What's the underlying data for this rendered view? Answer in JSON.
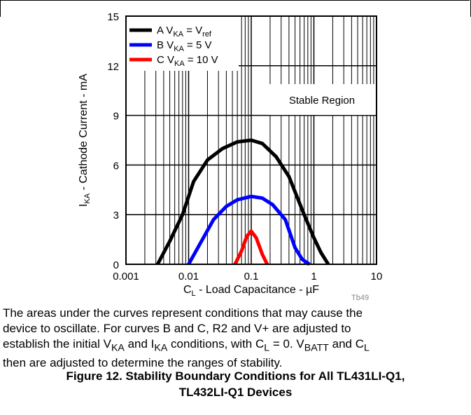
{
  "chart_data": {
    "type": "line",
    "x_scale": "log",
    "xlim": [
      0.001,
      10
    ],
    "ylim": [
      0,
      15
    ],
    "x_ticks": [
      "0.001",
      "0.01",
      "0.1",
      "1",
      "10"
    ],
    "y_ticks": [
      "0",
      "3",
      "6",
      "9",
      "12",
      "15"
    ],
    "grid": true,
    "legend_position": "top-left",
    "annotation": "Stable Region",
    "xlabel": {
      "main": "C",
      "sub": "L",
      "rest": " - Load Capacitance - µF"
    },
    "ylabel": {
      "main": "I",
      "sub": "KA",
      "rest": " - Cathode Current - mA"
    },
    "series": [
      {
        "name": "A V_KA = V_ref",
        "color": "#000000",
        "legend": {
          "letter": "A V",
          "sub1": "KA",
          "mid": " = V",
          "sub2": "ref"
        },
        "x": [
          0.0032,
          0.005,
          0.008,
          0.012,
          0.02,
          0.035,
          0.06,
          0.1,
          0.15,
          0.25,
          0.4,
          0.7,
          1.0,
          1.3,
          1.7
        ],
        "y": [
          0,
          1.4,
          3.0,
          5.0,
          6.3,
          7.0,
          7.4,
          7.5,
          7.3,
          6.5,
          5.3,
          3.0,
          1.6,
          0.7,
          0
        ]
      },
      {
        "name": "B V_KA = 5 V",
        "color": "#0000ff",
        "legend": {
          "letter": "B V",
          "sub1": "KA",
          "mid": " = 5 V",
          "sub2": ""
        },
        "x": [
          0.01,
          0.015,
          0.025,
          0.04,
          0.06,
          0.1,
          0.15,
          0.22,
          0.35,
          0.5,
          0.65,
          0.85
        ],
        "y": [
          0,
          1.2,
          2.7,
          3.5,
          3.9,
          4.1,
          4.0,
          3.6,
          2.7,
          1.0,
          0.3,
          0
        ]
      },
      {
        "name": "C V_KA = 10 V",
        "color": "#ff0000",
        "legend": {
          "letter": "C V",
          "sub1": "KA",
          "mid": " = 10 V",
          "sub2": ""
        },
        "x": [
          0.055,
          0.07,
          0.085,
          0.1,
          0.12,
          0.15,
          0.18
        ],
        "y": [
          0,
          0.8,
          1.7,
          2.0,
          1.6,
          0.6,
          0
        ]
      }
    ]
  },
  "figure_code": "Tb49",
  "caption": {
    "line1": "The areas under the curves represent conditions that may cause the",
    "line2": "device to oscillate. For curves B and C, R2 and V+ are adjusted to",
    "line3a": "establish the initial V",
    "line3b": "KA",
    "line3c": " and I",
    "line3d": "KA",
    "line3e": " conditions, with C",
    "line3f": "L",
    "line3g": " = 0. V",
    "line3h": "BATT",
    "line3i": " and C",
    "line3j": "L",
    "line4": "then are adjusted to determine the ranges of stability."
  },
  "figure_title": {
    "line1": "Figure 12. Stability Boundary Conditions for All TL431LI-Q1,",
    "line2": "TL432LI-Q1 Devices"
  }
}
